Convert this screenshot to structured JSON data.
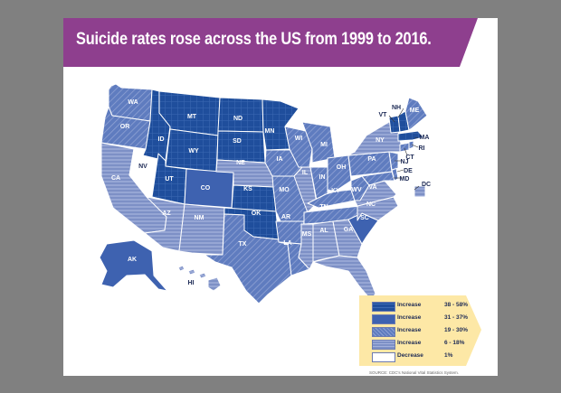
{
  "title": "Suicide rates rose across the US from 1999 to 2016.",
  "legend": [
    {
      "label": "Increase",
      "range": "38 - 58%",
      "pattern": "grid"
    },
    {
      "label": "Increase",
      "range": "31 - 37%",
      "pattern": "solid"
    },
    {
      "label": "Increase",
      "range": "19 - 30%",
      "pattern": "diag"
    },
    {
      "label": "Increase",
      "range": "6 - 18%",
      "pattern": "horiz"
    },
    {
      "label": "Decrease",
      "range": "1%",
      "pattern": "white"
    }
  ],
  "source": "SOURCE: CDC's National Vital Statistics System.",
  "colors": {
    "title_banner": "#8e3f8e",
    "dark": "#1f4e9c",
    "mid": "#5f7cbf",
    "light": "#8a9bd0",
    "legend_bg": "#fde8a6"
  },
  "states": {
    "WA": "diag",
    "OR": "diag",
    "ID": "grid",
    "MT": "grid",
    "ND": "grid",
    "MN": "grid",
    "WI": "diag",
    "MI": "diag",
    "NV": "white",
    "UT": "grid",
    "WY": "grid",
    "SD": "grid",
    "IA": "diag",
    "IL": "horiz",
    "IN": "diag",
    "OH": "diag",
    "PA": "diag",
    "NY": "horiz",
    "CA": "horiz",
    "CO": "solid",
    "NE": "horiz",
    "MO": "diag",
    "KY": "diag",
    "WV": "diag",
    "VA": "horiz",
    "AZ": "horiz",
    "NM": "horiz",
    "KS": "grid",
    "OK": "grid",
    "AR": "diag",
    "TN": "diag",
    "NC": "horiz",
    "SC": "solid",
    "TX": "diag",
    "LA": "diag",
    "MS": "horiz",
    "AL": "horiz",
    "GA": "horiz",
    "FL": "horiz",
    "AK": "solid",
    "HI": "horiz",
    "VT": "grid",
    "NH": "grid",
    "ME": "diag",
    "MA": "grid",
    "RI": "diag",
    "CT": "diag",
    "NJ": "diag",
    "DE": "diag",
    "MD": "diag",
    "DC": "horiz"
  }
}
